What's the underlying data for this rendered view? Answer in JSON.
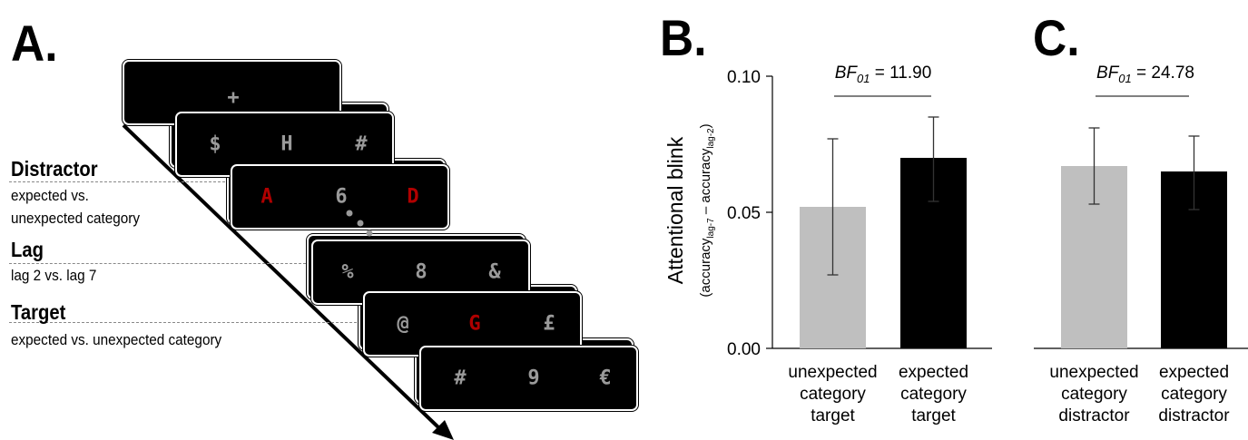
{
  "panel_letters": [
    "A.",
    "B.",
    "C."
  ],
  "panel_a": {
    "labels": [
      {
        "title": "Distractor",
        "sub": [
          "expected vs.",
          "unexpected category"
        ]
      },
      {
        "title": "Lag",
        "sub": [
          "lag 2 vs. lag 7"
        ]
      },
      {
        "title": "Target",
        "sub": [
          "expected vs. unexpected category"
        ]
      }
    ],
    "frames": [
      {
        "glyphs": [
          "+"
        ],
        "colors": [
          "grey"
        ]
      },
      {
        "glyphs": [
          "$",
          "H",
          "#"
        ],
        "colors": [
          "grey",
          "grey",
          "grey"
        ]
      },
      {
        "glyphs": [
          "A",
          "6",
          "D"
        ],
        "colors": [
          "red",
          "grey",
          "red"
        ]
      },
      {
        "glyphs": [
          "%",
          "8",
          "&"
        ],
        "colors": [
          "grey",
          "grey",
          "grey"
        ]
      },
      {
        "glyphs": [
          "@",
          "G",
          "£"
        ],
        "colors": [
          "grey",
          "red",
          "grey"
        ]
      },
      {
        "glyphs": [
          "#",
          "9",
          "€"
        ],
        "colors": [
          "grey",
          "grey",
          "grey"
        ]
      }
    ],
    "red_color": "#b00000",
    "grey_color": "#9a9a9a"
  },
  "chart_data": [
    {
      "type": "bar",
      "panel": "B.",
      "categories": [
        [
          "unexpected",
          "category",
          "target"
        ],
        [
          "expected",
          "category",
          "target"
        ]
      ],
      "values": [
        0.052,
        0.07
      ],
      "error_low": [
        0.027,
        0.054
      ],
      "error_high": [
        0.077,
        0.085
      ],
      "colors": [
        "#bfbfbf",
        "#000000"
      ],
      "ylim": [
        0,
        0.1
      ],
      "yticks": [
        "0.00",
        "0.05",
        "0.10"
      ],
      "ylabel": "Attentional blink",
      "ylabel_sub": [
        "(accuracy",
        "lag-7",
        " – accuracy",
        "lag-2",
        ")"
      ],
      "annotation": {
        "bf_base": "BF",
        "bf_sub": "01",
        "value": " = 11.90"
      }
    },
    {
      "type": "bar",
      "panel": "C.",
      "categories": [
        [
          "unexpected",
          "category",
          "distractor"
        ],
        [
          "expected",
          "category",
          "distractor"
        ]
      ],
      "values": [
        0.067,
        0.065
      ],
      "error_low": [
        0.053,
        0.051
      ],
      "error_high": [
        0.081,
        0.078
      ],
      "colors": [
        "#bfbfbf",
        "#000000"
      ],
      "ylim": [
        0,
        0.1
      ],
      "annotation": {
        "bf_base": "BF",
        "bf_sub": "01",
        "value": " = 24.78"
      }
    }
  ]
}
